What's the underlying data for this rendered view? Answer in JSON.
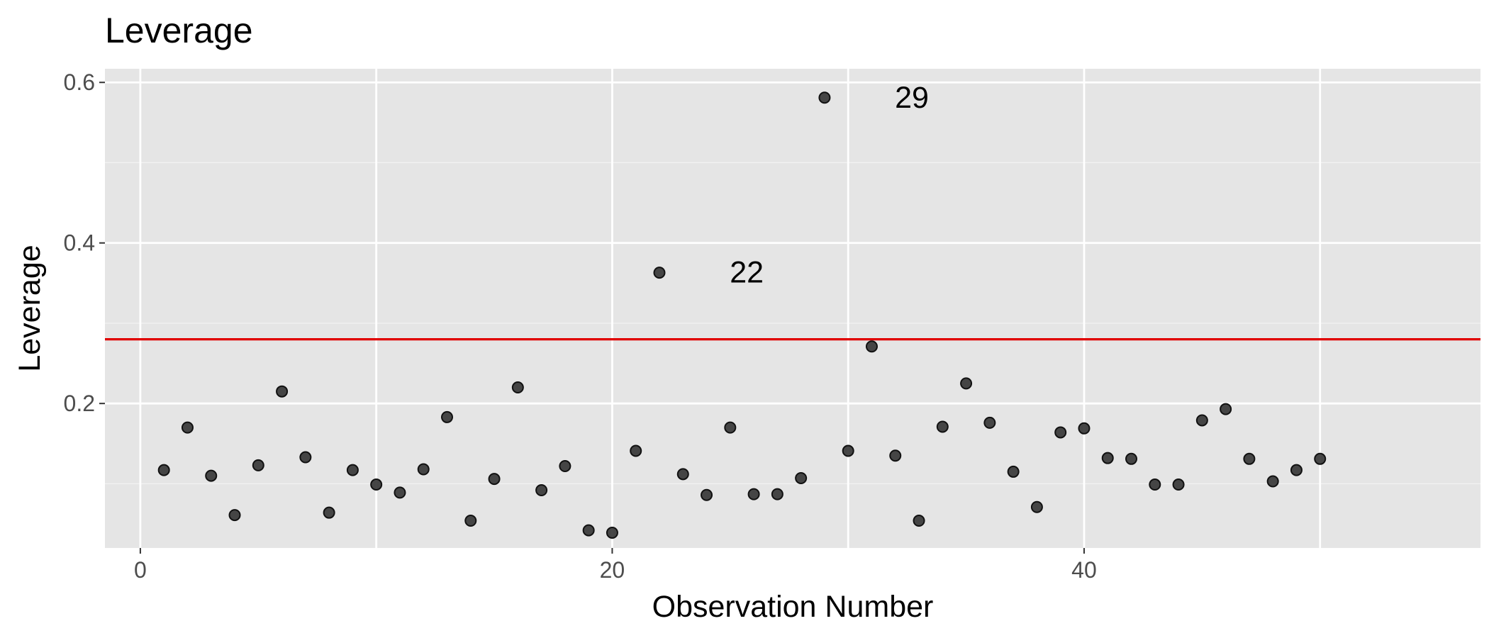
{
  "chart_data": {
    "type": "scatter",
    "title": "Leverage",
    "xlabel": "Observation Number",
    "ylabel": "Leverage",
    "xlim": [
      -1.5,
      56.8
    ],
    "ylim": [
      0.02,
      0.617
    ],
    "x_ticks": [
      0,
      20,
      40
    ],
    "x_tick_labels": [
      "0",
      "20",
      "40"
    ],
    "y_ticks": [
      0.2,
      0.4,
      0.6
    ],
    "y_tick_labels": [
      "0.2",
      "0.4",
      "0.6"
    ],
    "grid": true,
    "panel_background": "#e5e5e5",
    "point_color": "#333333",
    "threshold": {
      "y": 0.28,
      "color": "#e00000"
    },
    "annotations": [
      {
        "text": "22",
        "x": 25.7,
        "y": 0.363
      },
      {
        "text": "29",
        "x": 32.7,
        "y": 0.581
      }
    ],
    "x": [
      1,
      2,
      3,
      4,
      5,
      6,
      7,
      8,
      9,
      10,
      11,
      12,
      13,
      14,
      15,
      16,
      17,
      18,
      19,
      20,
      21,
      22,
      23,
      24,
      25,
      26,
      27,
      28,
      29,
      30,
      31,
      32,
      33,
      34,
      35,
      36,
      37,
      38,
      39,
      40,
      41,
      42,
      43,
      44,
      45,
      46,
      47,
      48,
      49,
      50
    ],
    "y": [
      0.117,
      0.17,
      0.11,
      0.061,
      0.123,
      0.215,
      0.133,
      0.064,
      0.117,
      0.099,
      0.089,
      0.118,
      0.183,
      0.054,
      0.106,
      0.22,
      0.092,
      0.122,
      0.042,
      0.039,
      0.141,
      0.363,
      0.112,
      0.086,
      0.17,
      0.087,
      0.087,
      0.107,
      0.581,
      0.141,
      0.271,
      0.135,
      0.054,
      0.171,
      0.225,
      0.176,
      0.115,
      0.071,
      0.164,
      0.169,
      0.132,
      0.131,
      0.099,
      0.099,
      0.179,
      0.193,
      0.131,
      0.103,
      0.117,
      0.131
    ]
  }
}
